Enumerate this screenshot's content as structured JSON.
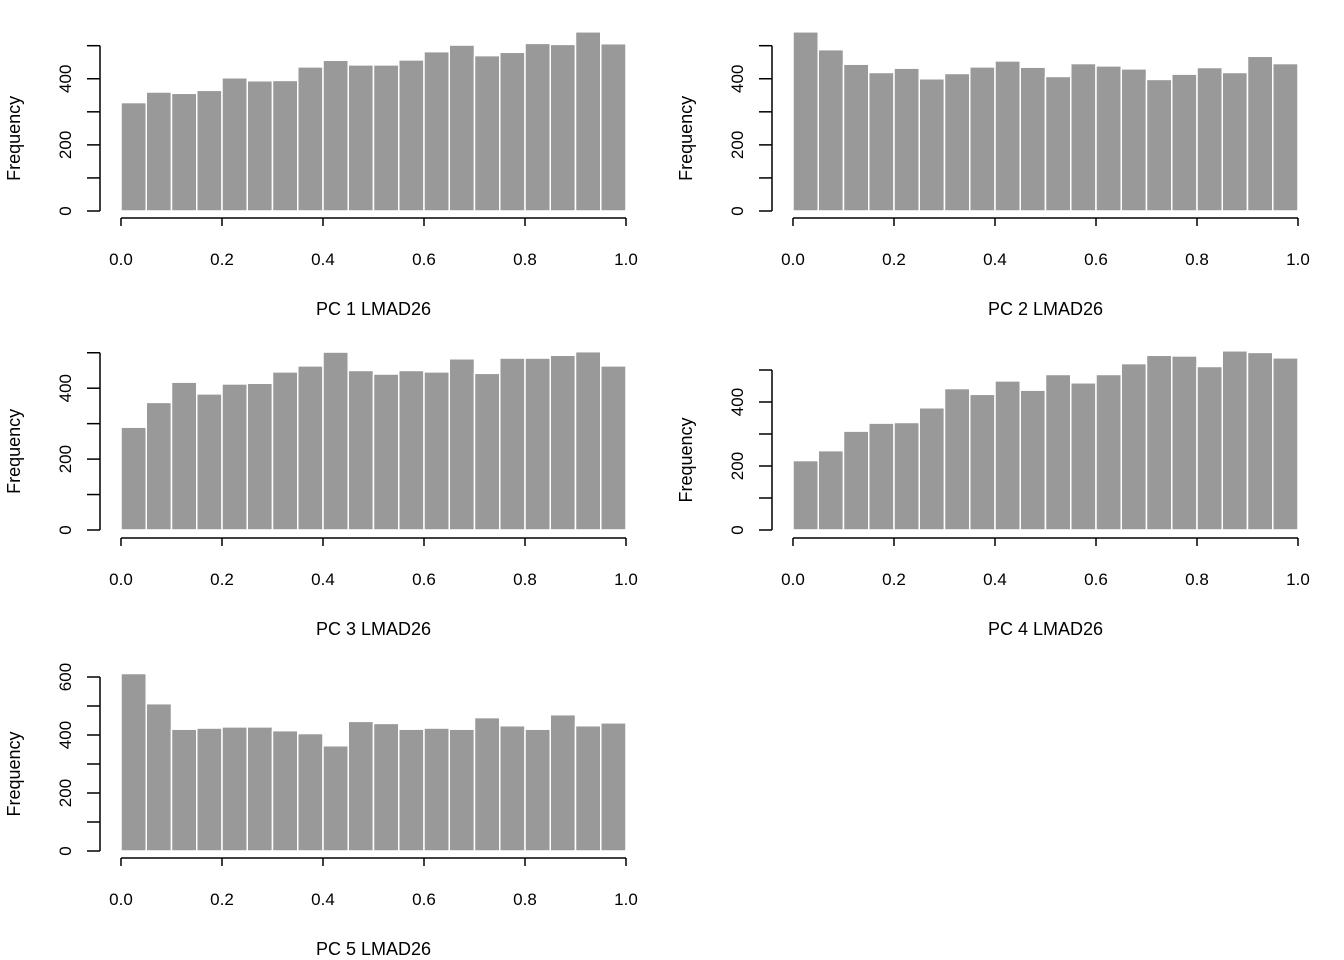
{
  "colors": {
    "bar_fill": "#999999",
    "bar_edge": "#ffffff",
    "axis": "#000000",
    "background": "#ffffff"
  },
  "chart_data": [
    {
      "type": "bar",
      "title": "",
      "xlabel": "PC 1 LMAD26",
      "ylabel": "Frequency",
      "xlim": [
        0,
        1
      ],
      "x_ticks": [
        "0.0",
        "0.2",
        "0.4",
        "0.6",
        "0.8",
        "1.0"
      ],
      "ylim": [
        0,
        500
      ],
      "y_ticks": [
        "0",
        "200",
        "400"
      ],
      "bin_width": 0.05,
      "values": [
        328,
        360,
        356,
        365,
        403,
        394,
        395,
        436,
        456,
        442,
        442,
        457,
        482,
        502,
        470,
        480,
        507,
        504,
        542,
        506
      ]
    },
    {
      "type": "bar",
      "title": "",
      "xlabel": "PC 2 LMAD26",
      "ylabel": "Frequency",
      "xlim": [
        0,
        1
      ],
      "x_ticks": [
        "0.0",
        "0.2",
        "0.4",
        "0.6",
        "0.8",
        "1.0"
      ],
      "ylim": [
        0,
        500
      ],
      "y_ticks": [
        "0",
        "200",
        "400"
      ],
      "bin_width": 0.05,
      "values": [
        542,
        488,
        444,
        419,
        432,
        400,
        416,
        436,
        454,
        435,
        407,
        446,
        439,
        430,
        398,
        414,
        434,
        419,
        468,
        446
      ]
    },
    {
      "type": "bar",
      "title": "",
      "xlabel": "PC 3 LMAD26",
      "ylabel": "Frequency",
      "xlim": [
        0,
        1
      ],
      "x_ticks": [
        "0.0",
        "0.2",
        "0.4",
        "0.6",
        "0.8",
        "1.0"
      ],
      "ylim": [
        0,
        500
      ],
      "y_ticks": [
        "0",
        "200",
        "400"
      ],
      "bin_width": 0.05,
      "values": [
        290,
        360,
        417,
        384,
        412,
        414,
        446,
        463,
        502,
        450,
        440,
        450,
        446,
        483,
        442,
        485,
        485,
        493,
        503,
        463
      ]
    },
    {
      "type": "bar",
      "title": "",
      "xlabel": "PC 4 LMAD26",
      "ylabel": "Frequency",
      "xlim": [
        0,
        1
      ],
      "x_ticks": [
        "0.0",
        "0.2",
        "0.4",
        "0.6",
        "0.8",
        "1.0"
      ],
      "ylim": [
        0,
        500
      ],
      "y_ticks": [
        "0",
        "200",
        "400"
      ],
      "bin_width": 0.05,
      "values": [
        217,
        248,
        309,
        334,
        336,
        382,
        442,
        424,
        466,
        437,
        486,
        460,
        486,
        520,
        546,
        544,
        511,
        560,
        555,
        538
      ]
    },
    {
      "type": "bar",
      "title": "",
      "xlabel": "PC 5 LMAD26",
      "ylabel": "Frequency",
      "xlim": [
        0,
        1
      ],
      "x_ticks": [
        "0.0",
        "0.2",
        "0.4",
        "0.6",
        "0.8",
        "1.0"
      ],
      "ylim": [
        0,
        600
      ],
      "y_ticks": [
        "0",
        "200",
        "400",
        "600"
      ],
      "bin_width": 0.05,
      "values": [
        612,
        508,
        420,
        424,
        428,
        428,
        415,
        405,
        363,
        447,
        440,
        420,
        424,
        420,
        460,
        432,
        420,
        470,
        432,
        442
      ]
    }
  ]
}
